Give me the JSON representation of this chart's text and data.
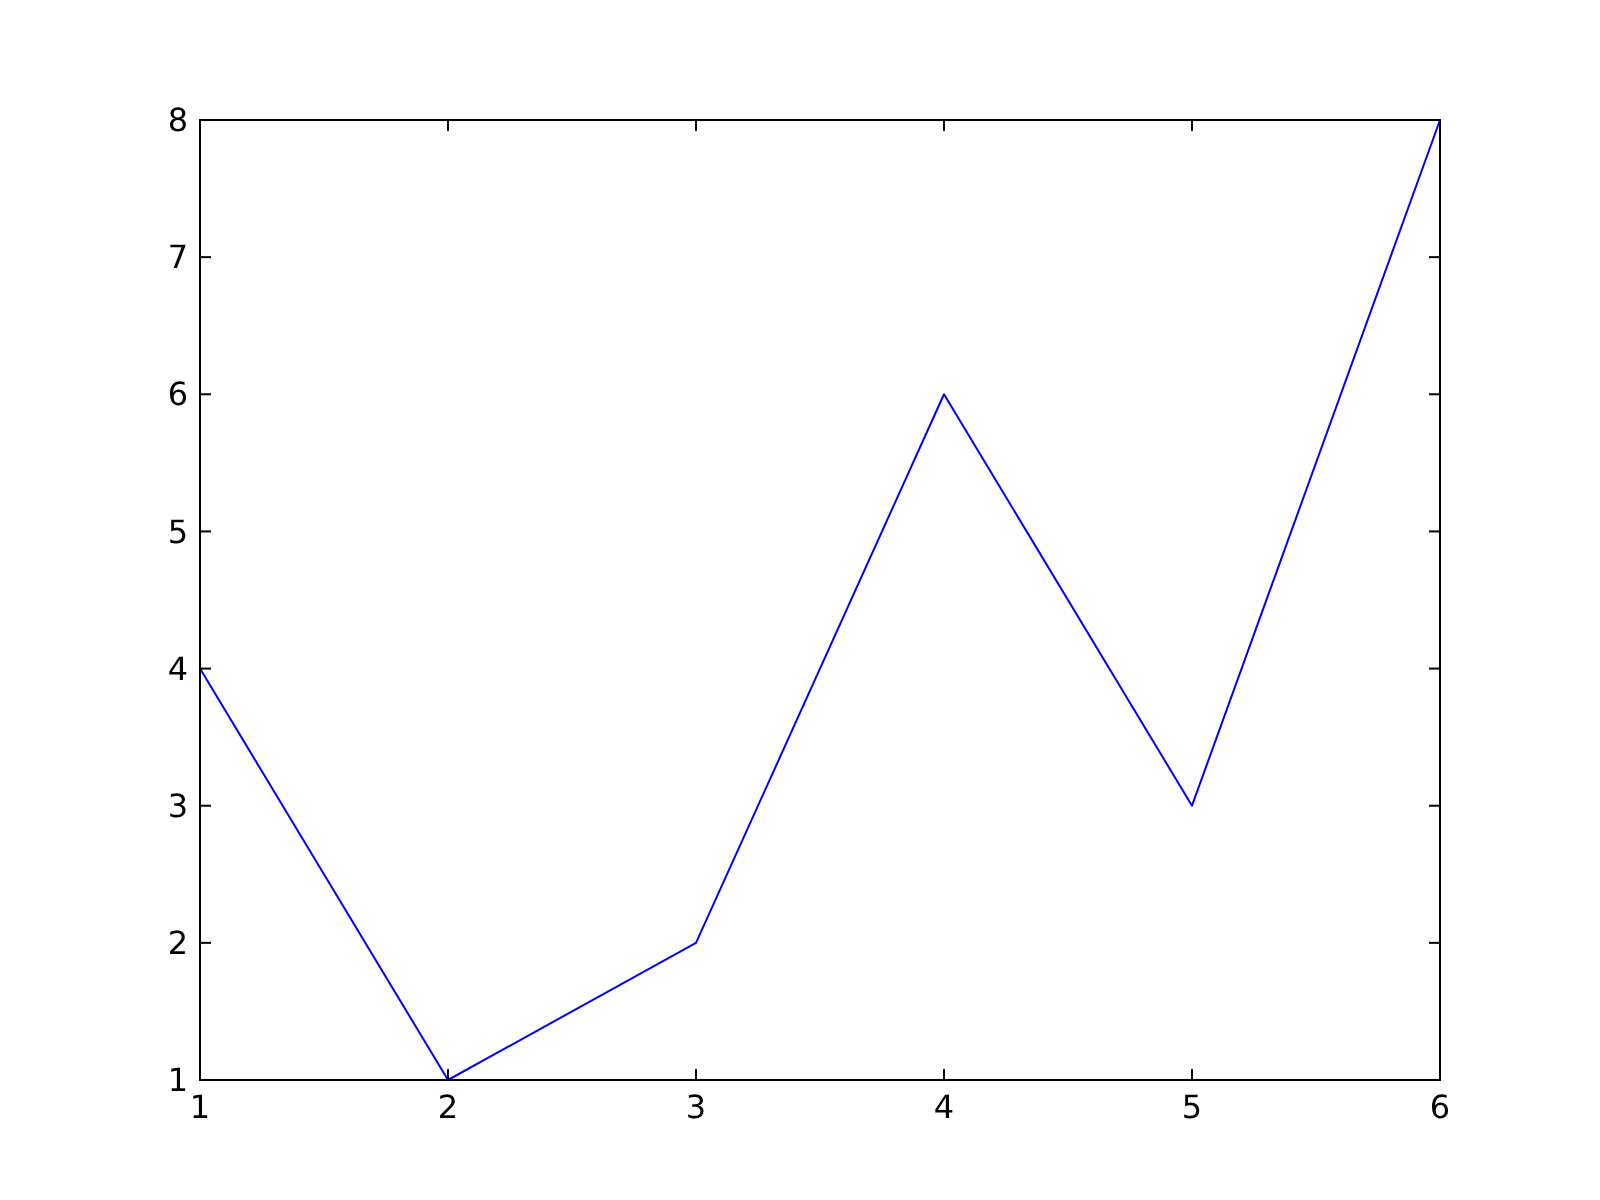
{
  "chart_data": {
    "type": "line",
    "x": [
      1,
      2,
      3,
      4,
      5,
      6
    ],
    "series": [
      {
        "color": "#0000ff",
        "values": [
          4,
          1,
          2,
          6,
          3,
          8
        ]
      }
    ],
    "xlim": [
      1,
      6
    ],
    "ylim": [
      1,
      8
    ],
    "xticks": [
      1,
      2,
      3,
      4,
      5,
      6
    ],
    "yticks": [
      1,
      2,
      3,
      4,
      5,
      6,
      7,
      8
    ]
  }
}
